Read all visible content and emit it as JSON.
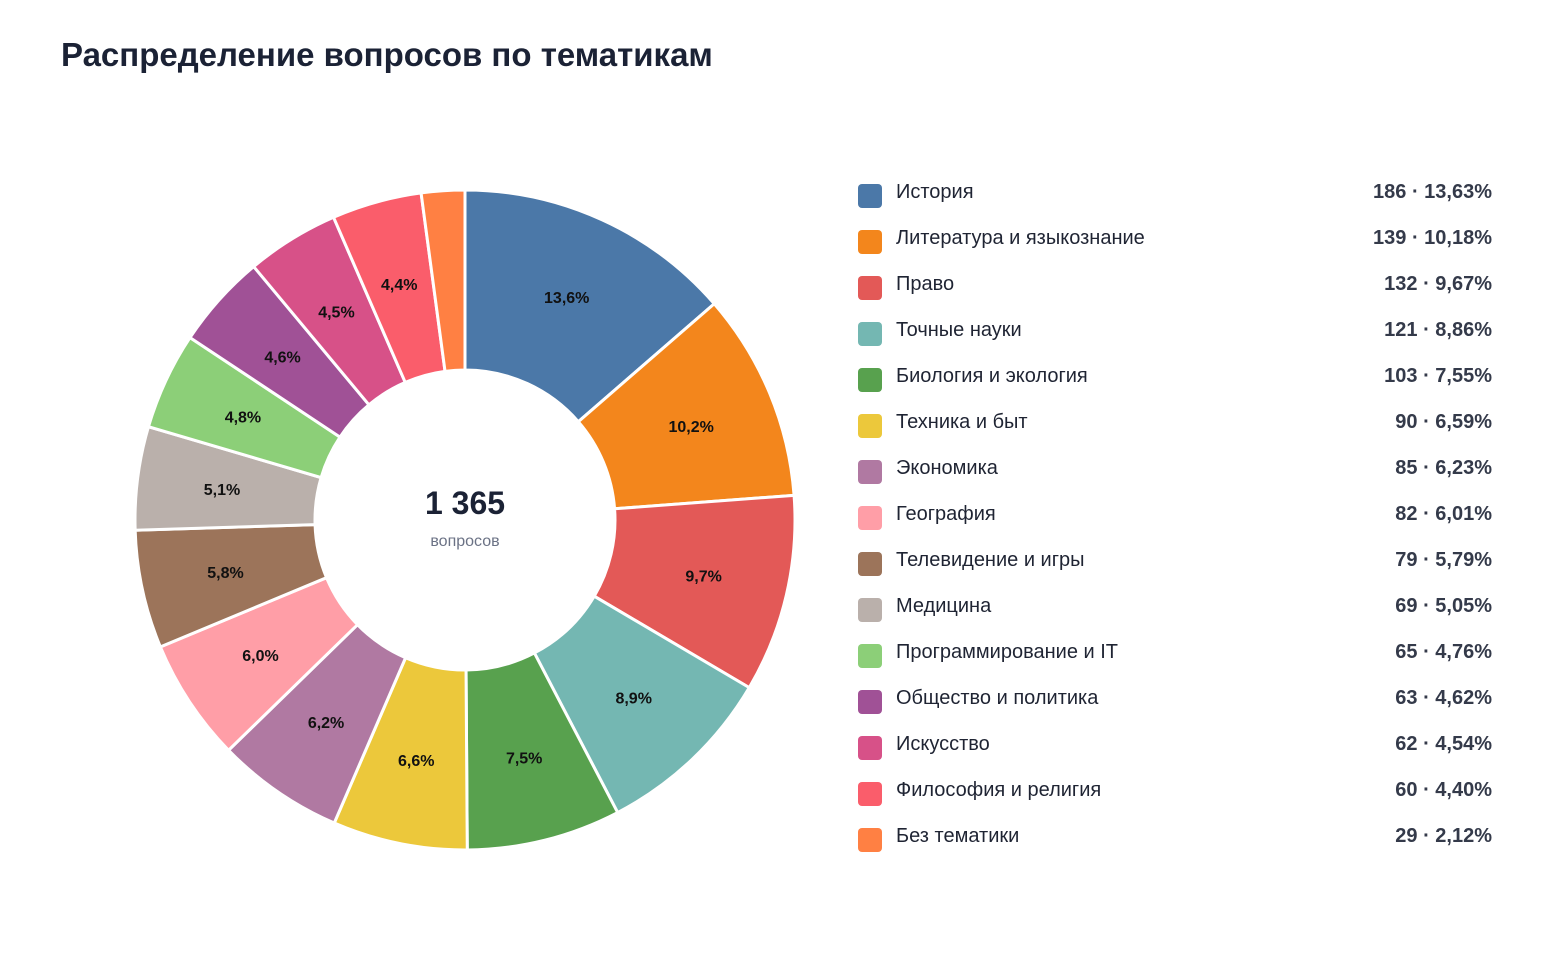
{
  "chart_data": {
    "type": "pie",
    "title": "Распределение вопросов по тематикам",
    "center": {
      "total": "1 365",
      "caption": "вопросов"
    },
    "legend_placement": "right",
    "slices": [
      {
        "name": "История",
        "value": 186,
        "percent": "13,63%",
        "label": "13,6%",
        "legend_text": "186 · 13,63%",
        "color": "#4b78a8"
      },
      {
        "name": "Литература и языкознание",
        "value": 139,
        "percent": "10,18%",
        "label": "10,2%",
        "legend_text": "139 · 10,18%",
        "color": "#f3861c"
      },
      {
        "name": "Право",
        "value": 132,
        "percent": "9,67%",
        "label": "9,7%",
        "legend_text": "132 · 9,67%",
        "color": "#e35957"
      },
      {
        "name": "Точные науки",
        "value": 121,
        "percent": "8,86%",
        "label": "8,9%",
        "legend_text": "121 · 8,86%",
        "color": "#74b7b2"
      },
      {
        "name": "Биология и экология",
        "value": 103,
        "percent": "7,55%",
        "label": "7,5%",
        "legend_text": "103 · 7,55%",
        "color": "#58a14e"
      },
      {
        "name": "Техника и быт",
        "value": 90,
        "percent": "6,59%",
        "label": "6,6%",
        "legend_text": "90 · 6,59%",
        "color": "#ecc83b"
      },
      {
        "name": "Экономика",
        "value": 85,
        "percent": "6,23%",
        "label": "6,2%",
        "legend_text": "85 · 6,23%",
        "color": "#b079a2"
      },
      {
        "name": "География",
        "value": 82,
        "percent": "6,01%",
        "label": "6,0%",
        "legend_text": "82 · 6,01%",
        "color": "#ff9ea7"
      },
      {
        "name": "Телевидение и игры",
        "value": 79,
        "percent": "5,79%",
        "label": "5,8%",
        "legend_text": "79 · 5,79%",
        "color": "#9c745a"
      },
      {
        "name": "Медицина",
        "value": 69,
        "percent": "5,05%",
        "label": "5,1%",
        "legend_text": "69 · 5,05%",
        "color": "#bab0ab"
      },
      {
        "name": "Программирование и IT",
        "value": 65,
        "percent": "4,76%",
        "label": "4,8%",
        "legend_text": "65 · 4,76%",
        "color": "#8ccf78"
      },
      {
        "name": "Общество и политика",
        "value": 63,
        "percent": "4,62%",
        "label": "4,6%",
        "legend_text": "63 · 4,62%",
        "color": "#a05196"
      },
      {
        "name": "Искусство",
        "value": 62,
        "percent": "4,54%",
        "label": "4,5%",
        "legend_text": "62 · 4,54%",
        "color": "#d75188"
      },
      {
        "name": "Философия и религия",
        "value": 60,
        "percent": "4,40%",
        "label": "4,4%",
        "legend_text": "60 · 4,40%",
        "color": "#fa5d6b"
      },
      {
        "name": "Без тематики",
        "value": 29,
        "percent": "2,12%",
        "label": "",
        "legend_text": "29 · 2,12%",
        "color": "#ff8043"
      }
    ]
  }
}
